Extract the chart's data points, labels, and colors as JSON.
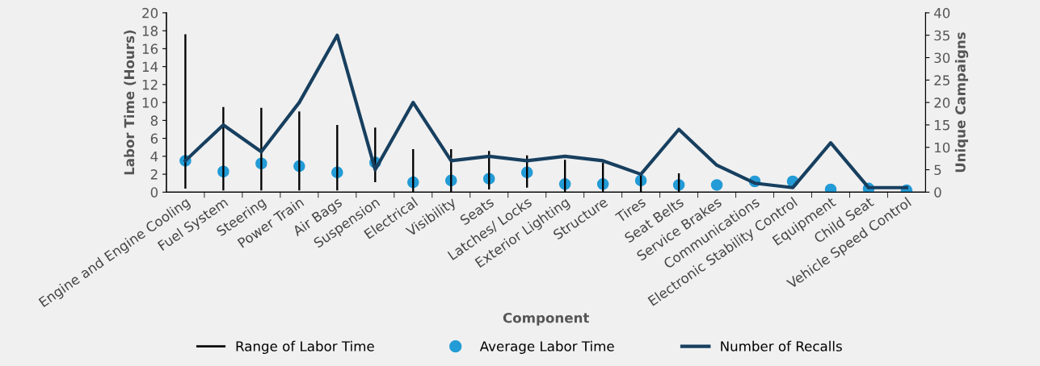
{
  "chart_data": {
    "type": "line",
    "xlabel": "Component",
    "ylabel": "Labor Time (Hours)",
    "y2label": "Unique Campaigns",
    "categories": [
      "Engine and Engine Cooling",
      "Fuel System",
      "Steering",
      "Power Train",
      "Air Bags",
      "Suspension",
      "Electrical",
      "Visibility",
      "Seats",
      "Latches/ Locks",
      "Exterior Lighting",
      "Structure",
      "Tires",
      "Seat Belts",
      "Service Brakes",
      "Communications",
      "Electronic Stability Control",
      "Equipment",
      "Child Seat",
      "Vehicle Speed Control"
    ],
    "series": [
      {
        "name": "Range of Labor Time",
        "type": "bar",
        "color": "#000000",
        "base": [
          0.4,
          0.2,
          0.2,
          0.2,
          0.2,
          1.1,
          0,
          0,
          0.3,
          0.5,
          0,
          0,
          0,
          0,
          null,
          null,
          null,
          null,
          null,
          null
        ],
        "values": [
          17.2,
          9.3,
          9.2,
          8.8,
          7.3,
          6.1,
          4.8,
          4.8,
          4.3,
          3.6,
          3.6,
          3.3,
          2.0,
          2.1,
          null,
          null,
          null,
          null,
          null,
          null
        ]
      },
      {
        "name": "Average Labor Time",
        "type": "scatter",
        "color": "#239bd6",
        "values": [
          3.5,
          2.3,
          3.2,
          2.9,
          2.2,
          3.3,
          1.1,
          1.3,
          1.5,
          2.2,
          0.9,
          0.9,
          1.3,
          0.8,
          0.8,
          1.2,
          1.2,
          0.3,
          0.4,
          0.2
        ]
      },
      {
        "name": "Number of Recalls",
        "axis": "y2",
        "color": "#173f5f",
        "values": [
          7,
          15,
          9,
          20,
          35,
          5,
          20,
          7,
          8,
          7,
          8,
          7,
          4,
          14,
          6,
          2,
          1,
          11,
          1,
          1
        ]
      }
    ],
    "ylim": [
      0,
      20
    ],
    "yticks": [
      0,
      2,
      4,
      6,
      8,
      10,
      12,
      14,
      16,
      18,
      20
    ],
    "y2lim": [
      0,
      40
    ],
    "y2ticks": [
      0,
      5,
      10,
      15,
      20,
      25,
      30,
      35,
      40
    ],
    "grid": false,
    "legend": "bottom"
  }
}
